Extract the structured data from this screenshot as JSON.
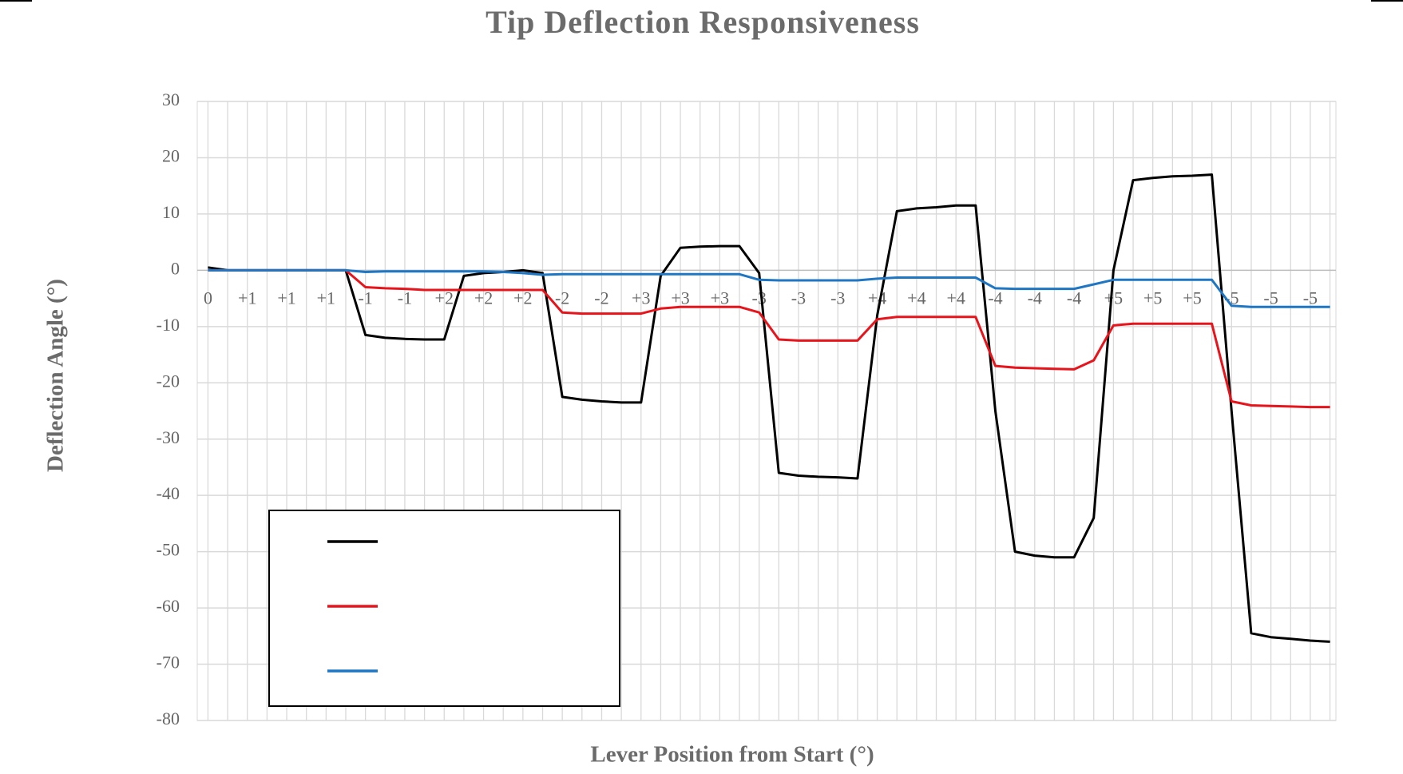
{
  "chart_data": {
    "type": "line",
    "title": "Tip Deflection Responsiveness",
    "xlabel": "Lever Position from Start (°)",
    "ylabel": "Deflection Angle (°)",
    "categories": [
      "0",
      null,
      "+1",
      null,
      "+1",
      null,
      "+1",
      null,
      "-1",
      null,
      "-1",
      null,
      "+2",
      null,
      "+2",
      null,
      "+2",
      null,
      "-2",
      null,
      "-2",
      null,
      "+3",
      null,
      "+3",
      null,
      "+3",
      null,
      "-3",
      null,
      "-3",
      null,
      "-3",
      null,
      "+4",
      null,
      "+4",
      null,
      "+4",
      null,
      "-4",
      null,
      "-4",
      null,
      "-4",
      null,
      "+5",
      null,
      "+5",
      null,
      "+5",
      null,
      "-5",
      null,
      "-5",
      null,
      "-5",
      null
    ],
    "series": [
      {
        "color": "#000000",
        "values": [
          0.5,
          0,
          0,
          0,
          0,
          0,
          0,
          0,
          -11.5,
          -12,
          -12.2,
          -12.3,
          -12.3,
          -1,
          -0.5,
          -0.3,
          0,
          -0.5,
          -22.5,
          -23,
          -23.3,
          -23.5,
          -23.5,
          -1,
          4,
          4.2,
          4.3,
          4.3,
          -0.5,
          -36,
          -36.5,
          -36.7,
          -36.8,
          -37,
          -8,
          10.5,
          11,
          11.2,
          11.5,
          11.5,
          -25,
          -50,
          -50.7,
          -51,
          -51,
          -44,
          0,
          16,
          16.4,
          16.7,
          16.8,
          17,
          -25,
          -64.5,
          -65.2,
          -65.5,
          -65.8,
          -66
        ]
      },
      {
        "color": "#e8141b",
        "values": [
          0,
          0,
          0,
          0,
          0,
          0,
          0,
          0,
          -3,
          -3.2,
          -3.3,
          -3.5,
          -3.5,
          -3.5,
          -3.5,
          -3.5,
          -3.5,
          -3.5,
          -7.5,
          -7.7,
          -7.7,
          -7.7,
          -7.7,
          -6.8,
          -6.5,
          -6.5,
          -6.5,
          -6.5,
          -7.5,
          -12.3,
          -12.5,
          -12.5,
          -12.5,
          -12.5,
          -8.7,
          -8.3,
          -8.3,
          -8.3,
          -8.3,
          -8.3,
          -17,
          -17.3,
          -17.4,
          -17.5,
          -17.6,
          -16,
          -9.8,
          -9.5,
          -9.5,
          -9.5,
          -9.5,
          -9.5,
          -23.3,
          -24,
          -24.1,
          -24.2,
          -24.3,
          -24.3
        ]
      },
      {
        "color": "#1f77c4",
        "values": [
          0,
          0,
          0,
          0,
          0,
          0,
          0,
          0,
          -0.3,
          -0.2,
          -0.2,
          -0.2,
          -0.2,
          -0.2,
          -0.2,
          -0.3,
          -0.5,
          -0.8,
          -0.7,
          -0.7,
          -0.7,
          -0.7,
          -0.7,
          -0.7,
          -0.7,
          -0.7,
          -0.7,
          -0.7,
          -1.7,
          -1.8,
          -1.8,
          -1.8,
          -1.8,
          -1.8,
          -1.5,
          -1.3,
          -1.3,
          -1.3,
          -1.3,
          -1.3,
          -3.2,
          -3.3,
          -3.3,
          -3.3,
          -3.3,
          -2.5,
          -1.7,
          -1.7,
          -1.7,
          -1.7,
          -1.7,
          -1.7,
          -6.3,
          -6.5,
          -6.5,
          -6.5,
          -6.5,
          -6.5
        ]
      }
    ],
    "ylim": [
      -80,
      30
    ],
    "yticks": [
      -80,
      -70,
      -60,
      -50,
      -40,
      -30,
      -20,
      -10,
      0,
      10,
      20,
      30
    ],
    "grid": true
  }
}
